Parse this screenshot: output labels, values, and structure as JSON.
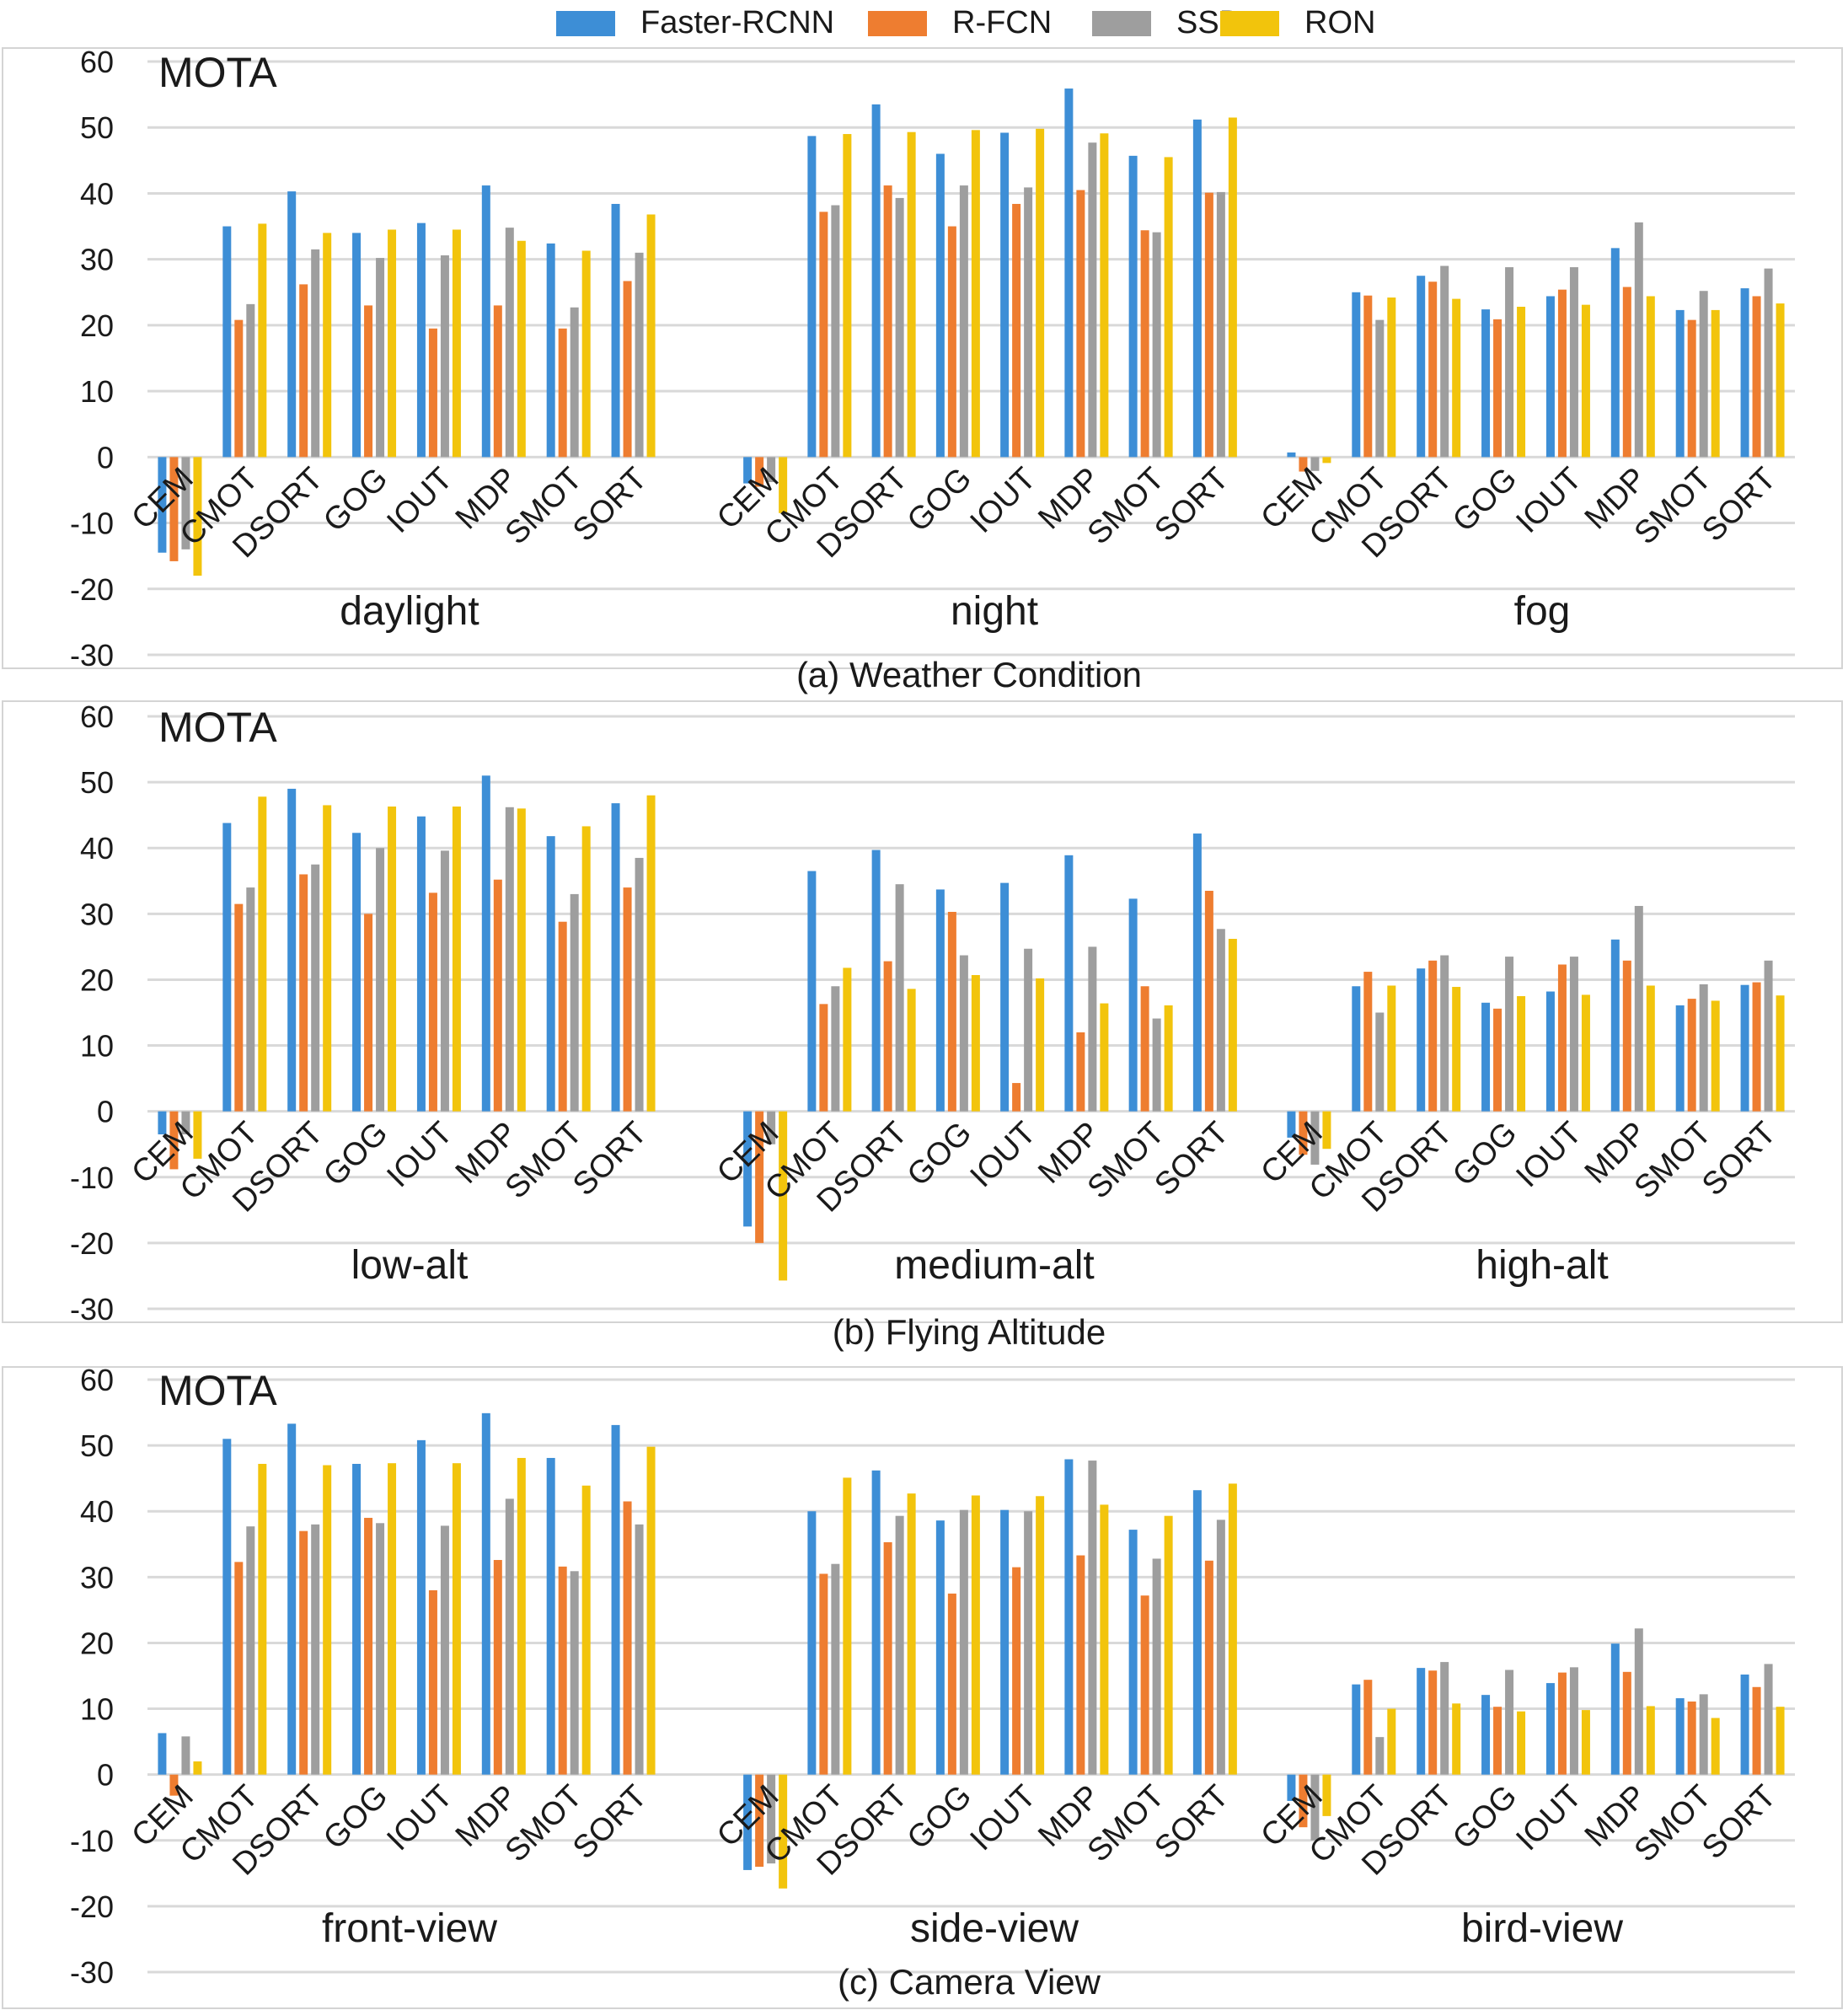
{
  "legend": [
    {
      "name": "Faster-RCNN",
      "color": "#3d8ed6"
    },
    {
      "name": "R-FCN",
      "color": "#ee7d30"
    },
    {
      "name": "SSD",
      "color": "#9e9e9e"
    },
    {
      "name": "RON",
      "color": "#f2c40c"
    }
  ],
  "chart_data": [
    {
      "type": "bar",
      "metric_label": "MOTA",
      "caption": "(a) Weather Condition",
      "ylim": [
        -30,
        60
      ],
      "yticks": [
        60,
        50,
        40,
        30,
        20,
        10,
        0,
        -10,
        -20,
        -30
      ],
      "grid": true,
      "legend_position": "top",
      "series_names": [
        "Faster-RCNN",
        "R-FCN",
        "SSD",
        "RON"
      ],
      "trackers": [
        "CEM",
        "CMOT",
        "DSORT",
        "GOG",
        "IOUT",
        "MDP",
        "SMOT",
        "SORT"
      ],
      "groups": [
        {
          "name": "daylight",
          "values": [
            [
              -14.5,
              -15.8,
              -14,
              -18
            ],
            [
              35,
              20.8,
              23.2,
              35.4
            ],
            [
              40.3,
              26.2,
              31.5,
              34
            ],
            [
              34,
              23,
              30.2,
              34.5
            ],
            [
              35.5,
              19.5,
              30.6,
              34.5
            ],
            [
              41.2,
              23,
              34.8,
              32.8
            ],
            [
              32.4,
              19.5,
              22.7,
              31.3
            ],
            [
              38.4,
              26.7,
              31,
              36.8
            ]
          ]
        },
        {
          "name": "night",
          "values": [
            [
              -4,
              -4.5,
              -3.8,
              -8.5
            ],
            [
              48.7,
              37.2,
              38.2,
              49
            ],
            [
              53.5,
              41.2,
              39.3,
              49.3
            ],
            [
              46,
              35,
              41.2,
              49.6
            ],
            [
              49.2,
              38.4,
              40.9,
              49.8
            ],
            [
              55.9,
              40.5,
              47.7,
              49.1
            ],
            [
              45.7,
              34.4,
              34.1,
              45.5
            ],
            [
              51.2,
              40.1,
              40.2,
              51.5
            ]
          ]
        },
        {
          "name": "fog",
          "values": [
            [
              0.7,
              -2.2,
              -2.1,
              -0.9
            ],
            [
              25,
              24.5,
              20.8,
              24.2
            ],
            [
              27.5,
              26.6,
              29,
              24
            ],
            [
              22.4,
              20.9,
              28.8,
              22.8
            ],
            [
              24.4,
              25.4,
              28.8,
              23.1
            ],
            [
              31.7,
              25.8,
              35.6,
              24.4
            ],
            [
              22.3,
              20.8,
              25.2,
              22.3
            ],
            [
              25.6,
              24.4,
              28.6,
              23.3
            ]
          ]
        }
      ]
    },
    {
      "type": "bar",
      "metric_label": "MOTA",
      "caption": "(b) Flying Altitude",
      "ylim": [
        -30,
        60
      ],
      "yticks": [
        60,
        50,
        40,
        30,
        20,
        10,
        0,
        -10,
        -20,
        -30
      ],
      "grid": true,
      "series_names": [
        "Faster-RCNN",
        "R-FCN",
        "SSD",
        "RON"
      ],
      "trackers": [
        "CEM",
        "CMOT",
        "DSORT",
        "GOG",
        "IOUT",
        "MDP",
        "SMOT",
        "SORT"
      ],
      "groups": [
        {
          "name": "low-alt",
          "values": [
            [
              -3.5,
              -8.8,
              -3.5,
              -7.2
            ],
            [
              43.8,
              31.5,
              34,
              47.8
            ],
            [
              49,
              36,
              37.5,
              46.5
            ],
            [
              42.3,
              30,
              40,
              46.3
            ],
            [
              44.8,
              33.2,
              39.6,
              46.3
            ],
            [
              51,
              35.2,
              46.2,
              46
            ],
            [
              41.8,
              28.8,
              33,
              43.3
            ],
            [
              46.8,
              34,
              38.5,
              48
            ]
          ]
        },
        {
          "name": "medium-alt",
          "values": [
            [
              -17.5,
              -20,
              -5,
              -25.7
            ],
            [
              36.5,
              16.3,
              19,
              21.8
            ],
            [
              39.7,
              22.8,
              34.5,
              18.6
            ],
            [
              33.7,
              30.3,
              23.7,
              20.7
            ],
            [
              34.7,
              4.3,
              24.7,
              20.2
            ],
            [
              38.9,
              12,
              25,
              16.4
            ],
            [
              32.3,
              19,
              14.1,
              16.1
            ],
            [
              42.2,
              33.5,
              27.7,
              26.2
            ]
          ]
        },
        {
          "name": "high-alt",
          "values": [
            [
              -4,
              -6.6,
              -8.1,
              -5.7
            ],
            [
              19,
              21.2,
              15,
              19.1
            ],
            [
              21.7,
              22.9,
              23.7,
              18.9
            ],
            [
              16.5,
              15.6,
              23.5,
              17.5
            ],
            [
              18.2,
              22.3,
              23.5,
              17.7
            ],
            [
              26.1,
              22.9,
              31.2,
              19.1
            ],
            [
              16.1,
              17.1,
              19.3,
              16.8
            ],
            [
              19.2,
              19.6,
              22.9,
              17.6
            ]
          ]
        }
      ]
    },
    {
      "type": "bar",
      "metric_label": "MOTA",
      "caption": "(c) Camera View",
      "ylim": [
        -30,
        60
      ],
      "yticks": [
        60,
        50,
        40,
        30,
        20,
        10,
        0,
        -10,
        -20,
        -30
      ],
      "grid": true,
      "series_names": [
        "Faster-RCNN",
        "R-FCN",
        "SSD",
        "RON"
      ],
      "trackers": [
        "CEM",
        "CMOT",
        "DSORT",
        "GOG",
        "IOUT",
        "MDP",
        "SMOT",
        "SORT"
      ],
      "groups": [
        {
          "name": "front-view",
          "values": [
            [
              6.3,
              -3.2,
              5.8,
              2
            ],
            [
              51,
              32.3,
              37.7,
              47.2
            ],
            [
              53.3,
              37,
              38,
              47
            ],
            [
              47.2,
              39,
              38.2,
              47.3
            ],
            [
              50.8,
              28,
              37.8,
              47.3
            ],
            [
              54.9,
              32.6,
              41.9,
              48.1
            ],
            [
              48.1,
              31.6,
              30.9,
              43.9
            ],
            [
              53.1,
              41.5,
              38,
              49.8
            ]
          ]
        },
        {
          "name": "side-view",
          "values": [
            [
              -14.5,
              -14,
              -13.5,
              -17.3
            ],
            [
              40,
              30.5,
              32,
              45.1
            ],
            [
              46.2,
              35.3,
              39.3,
              42.7
            ],
            [
              38.6,
              27.5,
              40.2,
              42.4
            ],
            [
              40.2,
              31.5,
              40,
              42.3
            ],
            [
              47.9,
              33.3,
              47.7,
              41
            ],
            [
              37.2,
              27.2,
              32.8,
              39.3
            ],
            [
              43.2,
              32.5,
              38.7,
              44.2
            ]
          ]
        },
        {
          "name": "bird-view",
          "values": [
            [
              -4,
              -8,
              -10,
              -6.3
            ],
            [
              13.7,
              14.4,
              5.7,
              10
            ],
            [
              16.2,
              15.8,
              17.1,
              10.8
            ],
            [
              12.1,
              10.3,
              15.9,
              9.6
            ],
            [
              13.9,
              15.5,
              16.3,
              9.8
            ],
            [
              19.9,
              15.6,
              22.2,
              10.4
            ],
            [
              11.6,
              11.1,
              12.2,
              8.6
            ],
            [
              15.2,
              13.3,
              16.8,
              10.3
            ]
          ]
        }
      ]
    }
  ]
}
